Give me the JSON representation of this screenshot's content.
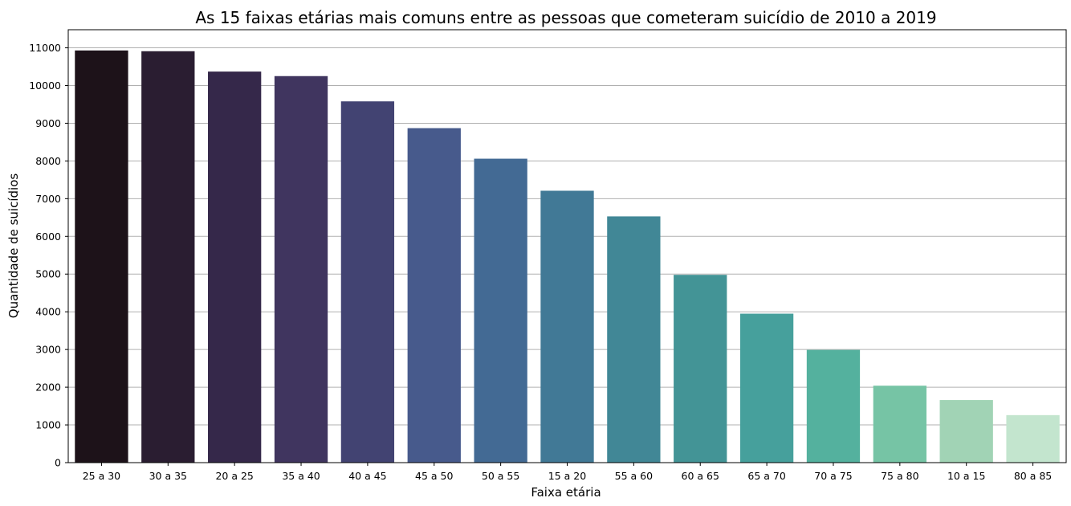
{
  "chart_data": {
    "type": "bar",
    "title": "As 15 faixas etárias mais comuns entre as pessoas que cometeram suicídio de 2010 a 2019",
    "xlabel": "Faixa etária",
    "ylabel": "Quantidade de suicídios",
    "categories": [
      "25 a 30",
      "30 a 35",
      "20 a 25",
      "35 a 40",
      "40 a 45",
      "45 a 50",
      "50 a 55",
      "15 a 20",
      "55 a 60",
      "60 a 65",
      "65 a 70",
      "70 a 75",
      "75 a 80",
      "10 a 15",
      "80 a 85"
    ],
    "values": [
      10930,
      10910,
      10370,
      10250,
      9580,
      8870,
      8060,
      7210,
      6530,
      4980,
      3950,
      2990,
      2040,
      1660,
      1260
    ],
    "colors": [
      "#1d1219",
      "#2a1d31",
      "#35284a",
      "#40355f",
      "#424372",
      "#475a8c",
      "#436a94",
      "#417996",
      "#418796",
      "#439496",
      "#46a09c",
      "#54b19e",
      "#76c4a5",
      "#a1d3b5",
      "#c3e5ce"
    ],
    "yticks": [
      0,
      1000,
      2000,
      3000,
      4000,
      5000,
      6000,
      7000,
      8000,
      9000,
      10000,
      11000
    ],
    "ylim": [
      0,
      11480
    ],
    "grid": "y"
  }
}
